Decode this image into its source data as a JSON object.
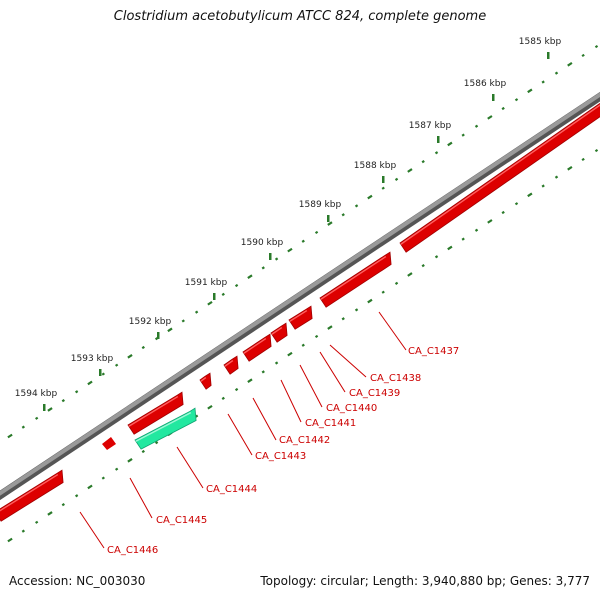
{
  "header": {
    "title": "Clostridium acetobutylicum ATCC 824, complete genome"
  },
  "footer": {
    "accession": "Accession: NC_003030",
    "summary": "Topology: circular; Length: 3,940,880 bp; Genes: 3,777"
  },
  "scale": {
    "ticks": [
      "1585 kbp",
      "1586 kbp",
      "1587 kbp",
      "1588 kbp",
      "1589 kbp",
      "1590 kbp",
      "1591 kbp",
      "1592 kbp",
      "1593 kbp",
      "1594 kbp"
    ]
  },
  "genes": [
    {
      "label": "CA_C1437",
      "color": "#dd0000"
    },
    {
      "label": "CA_C1438",
      "color": "#dd0000"
    },
    {
      "label": "CA_C1439",
      "color": "#dd0000"
    },
    {
      "label": "CA_C1440",
      "color": "#dd0000"
    },
    {
      "label": "CA_C1441",
      "color": "#dd0000"
    },
    {
      "label": "CA_C1442",
      "color": "#dd0000"
    },
    {
      "label": "CA_C1443",
      "color": "#dd0000"
    },
    {
      "label": "CA_C1444",
      "color": "#22e8a0"
    },
    {
      "label": "CA_C1445",
      "color": "#dd0000"
    },
    {
      "label": "CA_C1446",
      "color": "#dd0000"
    }
  ],
  "colors": {
    "backbone": "#888888",
    "tick": "#2a7a2a",
    "forward_gene": "#dd0000",
    "reverse_gene": "#22e8a0",
    "label": "#cc0000"
  }
}
